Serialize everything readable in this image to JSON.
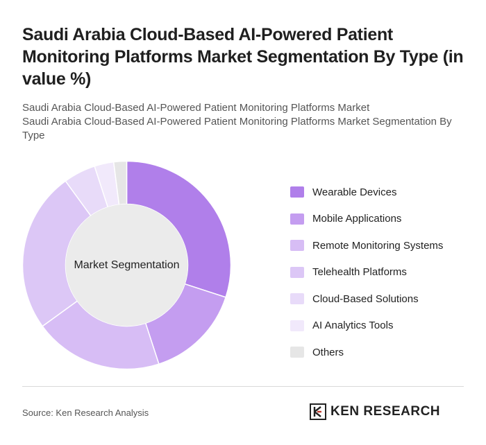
{
  "title": "Saudi Arabia Cloud-Based AI-Powered Patient Monitoring Platforms Market Segmentation By Type (in value %)",
  "subtitle_lines": [
    "Saudi Arabia Cloud-Based AI-Powered Patient Monitoring Platforms Market",
    "Saudi Arabia Cloud-Based AI-Powered Patient Monitoring Platforms Market Segmentation By Type"
  ],
  "chart_data": {
    "type": "pie",
    "donut": true,
    "center_label": "Market Segmentation",
    "legend_position": "right",
    "categories": [
      "Wearable Devices",
      "Mobile Applications",
      "Remote Monitoring Systems",
      "Telehealth Platforms",
      "Cloud-Based Solutions",
      "AI Analytics Tools",
      "Others"
    ],
    "values": [
      30,
      15,
      20,
      25,
      5,
      3,
      2
    ],
    "colors": [
      "#b07fea",
      "#c49df0",
      "#d7bdf5",
      "#dcc7f6",
      "#e8dbf9",
      "#f1e9fb",
      "#e6e6e6"
    ]
  },
  "footer": {
    "source": "Source: Ken Research Analysis",
    "logo_text": "KEN RESEARCH"
  }
}
